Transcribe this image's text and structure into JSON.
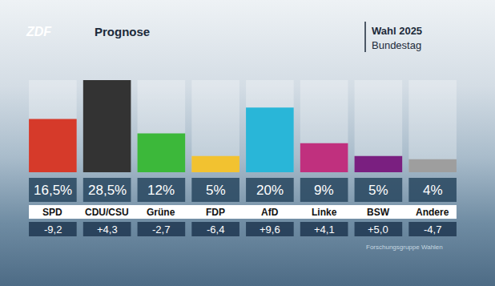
{
  "chart_data": {
    "type": "bar",
    "title": "Prognose",
    "logo": "ZDF",
    "subtitle": [
      "Wahl 2025",
      "Bundestag"
    ],
    "source": "Forschungsgruppe Wahlen",
    "categories": [
      "SPD",
      "CDU/CSU",
      "Grüne",
      "FDP",
      "AfD",
      "Linke",
      "BSW",
      "Andere"
    ],
    "values": [
      16.5,
      28.5,
      12,
      5,
      20,
      9,
      5,
      4
    ],
    "value_labels": [
      "16,5%",
      "28,5%",
      "12%",
      "5%",
      "20%",
      "9%",
      "5%",
      "4%"
    ],
    "changes": [
      -9.2,
      4.3,
      -2.7,
      -6.4,
      9.6,
      4.1,
      5.0,
      -4.7
    ],
    "change_labels": [
      "-9,2",
      "+4,3",
      "-2,7",
      "-6,4",
      "+9,6",
      "+4,1",
      "+5,0",
      "-4,7"
    ],
    "colors": [
      "#d63a2a",
      "#333333",
      "#3cb83a",
      "#f2c230",
      "#29b6d8",
      "#c0307e",
      "#7a1f80",
      "#9e9e9e"
    ],
    "ylim": [
      0,
      28.5
    ],
    "grid": false,
    "data_labels": true,
    "tick_labels": false
  }
}
